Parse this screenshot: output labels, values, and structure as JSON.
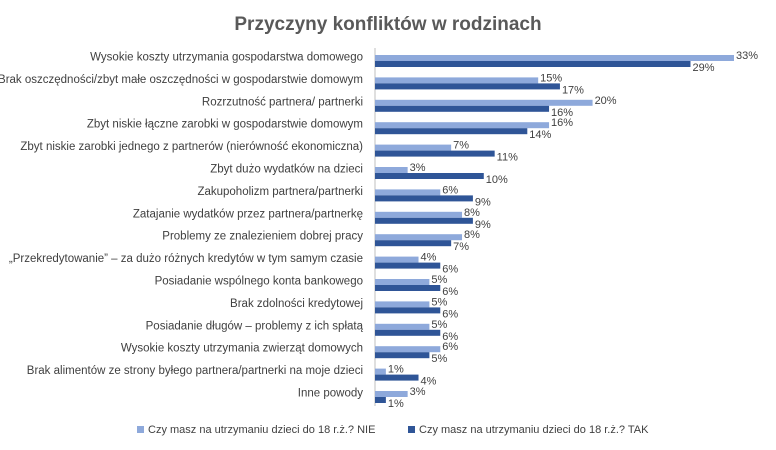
{
  "chart_data": {
    "type": "bar",
    "orientation": "horizontal",
    "title": "Przyczyny konfliktów w rodzinach",
    "categories": [
      "Wysokie koszty utrzymania gospodarstwa domowego",
      "Brak oszczędności/zbyt małe oszczędności w gospodarstwie domowym",
      "Rozrzutność partnera/ partnerki",
      "Zbyt niskie łączne zarobki w gospodarstwie domowym",
      "Zbyt niskie zarobki jednego z partnerów (nierówność ekonomiczna)",
      "Zbyt dużo wydatków na dzieci",
      "Zakupoholizm partnera/partnerki",
      "Zatajanie wydatków przez partnera/partnerkę",
      "Problemy ze znalezieniem dobrej pracy",
      "„Przekredytowanie” – za dużo różnych kredytów w tym samym czasie",
      "Posiadanie wspólnego konta bankowego",
      "Brak zdolności kredytowej",
      "Posiadanie długów – problemy z ich spłatą",
      "Wysokie koszty utrzymania zwierząt domowych",
      "Brak alimentów ze strony byłego partnera/partnerki na moje dzieci",
      "Inne powody"
    ],
    "series": [
      {
        "name": "Czy masz na utrzymaniu dzieci do 18 r.ż.? NIE",
        "color": "#8EA9DB",
        "values": [
          33,
          15,
          20,
          16,
          7,
          3,
          6,
          8,
          8,
          4,
          5,
          5,
          5,
          6,
          1,
          3
        ],
        "labels": [
          "33%",
          "15%",
          "20%",
          "16%",
          "7%",
          "3%",
          "6%",
          "8%",
          "8%",
          "4%",
          "5%",
          "5%",
          "5%",
          "6%",
          "1%",
          "3%"
        ]
      },
      {
        "name": "Czy masz na utrzymaniu dzieci do 18 r.ż.? TAK",
        "color": "#2F5597",
        "values": [
          29,
          17,
          16,
          14,
          11,
          10,
          9,
          9,
          7,
          6,
          6,
          6,
          6,
          5,
          4,
          1
        ],
        "labels": [
          "29%",
          "17%",
          "16%",
          "14%",
          "11%",
          "10%",
          "9%",
          "9%",
          "7%",
          "6%",
          "6%",
          "6%",
          "6%",
          "5%",
          "4%",
          "1%"
        ]
      }
    ],
    "value_unit": "%",
    "xlim": [
      0,
      33
    ],
    "grid": false,
    "legend_position": "bottom"
  }
}
